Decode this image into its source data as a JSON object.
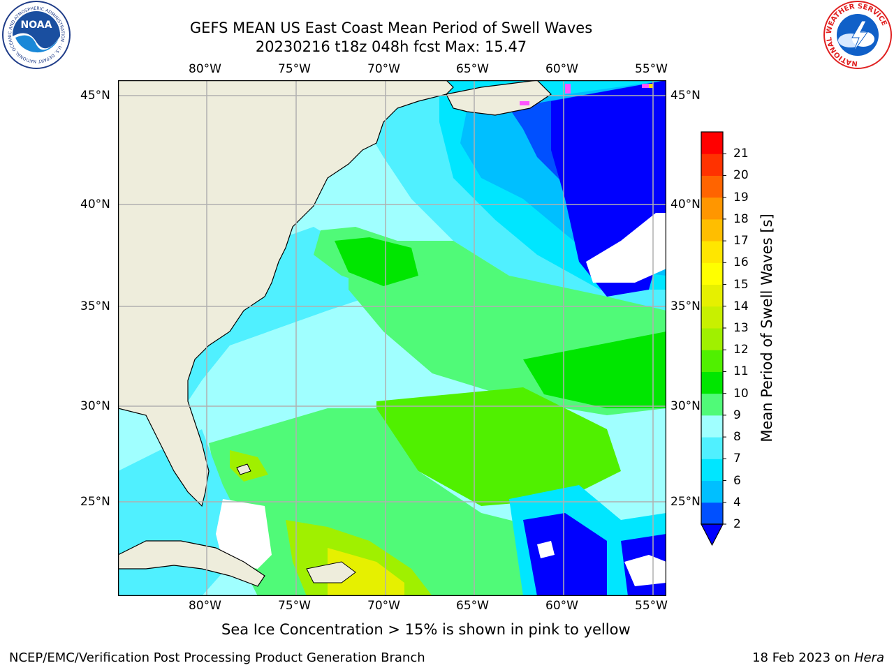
{
  "title": {
    "line1": "GEFS MEAN US East Coast Mean Period of Swell Waves",
    "line2": "20230216 t18z 048h fcst   Max: 15.47"
  },
  "map": {
    "lon_labels": [
      "80°W",
      "75°W",
      "70°W",
      "65°W",
      "60°W",
      "55°W"
    ],
    "lat_labels": [
      "45°N",
      "40°N",
      "35°N",
      "30°N",
      "25°N"
    ],
    "colors": {
      "land": "#eeeddc",
      "no_data": "#ffffff",
      "grid": "#b0b0b0",
      "sea_ice_pink": "#ff55ff",
      "sea_ice_yellow": "#ffd700"
    }
  },
  "colorbar": {
    "label": "Mean Period of Swell Waves [s]",
    "tick_labels": [
      "2",
      "4",
      "6",
      "7",
      "8",
      "9",
      "10",
      "11",
      "12",
      "13",
      "14",
      "15",
      "16",
      "17",
      "18",
      "19",
      "20",
      "21"
    ],
    "colors": [
      "#0050ff",
      "#00bfff",
      "#00e6ff",
      "#50f0ff",
      "#a0ffff",
      "#50fa78",
      "#00e600",
      "#50f000",
      "#a0f000",
      "#c8f000",
      "#e6f000",
      "#ffff00",
      "#ffe600",
      "#ffbe00",
      "#ff9600",
      "#ff6400",
      "#ff3200",
      "#ff0000"
    ],
    "under_color": "#0000ff"
  },
  "notes": {
    "sea_ice": "Sea Ice Concentration > 15% is shown in pink to yellow"
  },
  "footer": {
    "left": "NCEP/EMC/Verification Post Processing Product Generation Branch",
    "right_date": "18 Feb 2023 on ",
    "right_host": "Hera"
  },
  "logos": {
    "noaa": {
      "text": "NOAA",
      "ring_text": "NATIONAL OCEANIC AND ATMOSPHERIC ADMINISTRATION · U.S. DEPARTMENT OF COMMERCE"
    },
    "nws": {
      "ring_text": "NATIONAL WEATHER SERVICE"
    }
  }
}
